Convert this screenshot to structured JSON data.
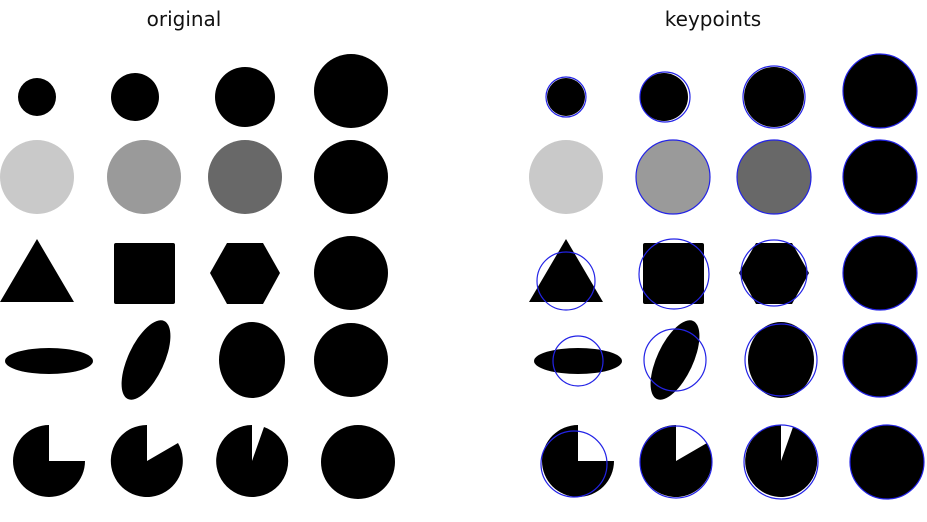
{
  "titles": {
    "left": "original",
    "right": "keypoints"
  },
  "colors": {
    "background": "#ffffff",
    "shape_black": "#000000",
    "gray_light": "#c9c9c9",
    "gray_mid": "#9a9a9a",
    "gray_dark": "#686868",
    "keypoint": "#2323e6"
  }
}
